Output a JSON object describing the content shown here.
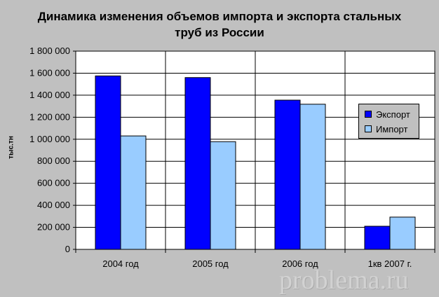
{
  "chart_data": {
    "type": "bar",
    "title": "Динамика изменения объемов импорта и экспорта стальных\nтруб из России",
    "ylabel": "тыс.тн",
    "xlabel": "",
    "categories": [
      "2004 год",
      "2005 год",
      "2006 год",
      "1кв 2007 г."
    ],
    "series": [
      {
        "name": "Экспорт",
        "color": "#0000ff",
        "values": [
          1575000,
          1560000,
          1355000,
          210000
        ]
      },
      {
        "name": "Импорт",
        "color": "#99ccff",
        "values": [
          1030000,
          978000,
          1318000,
          293000
        ]
      }
    ],
    "ylim": [
      0,
      1800000
    ],
    "yticks": [
      0,
      200000,
      400000,
      600000,
      800000,
      1000000,
      1200000,
      1400000,
      1600000,
      1800000
    ],
    "ytick_labels": [
      "0",
      "200 000",
      "400 000",
      "600 000",
      "800 000",
      "1 000 000",
      "1 200 000",
      "1 400 000",
      "1 600 000",
      "1 800 000"
    ],
    "grid": true,
    "legend_position": "right",
    "plot_background": "#ffffff"
  },
  "legend": {
    "export_label": "Экспорт",
    "import_label": "Импорт"
  },
  "watermark": "problema.ru"
}
